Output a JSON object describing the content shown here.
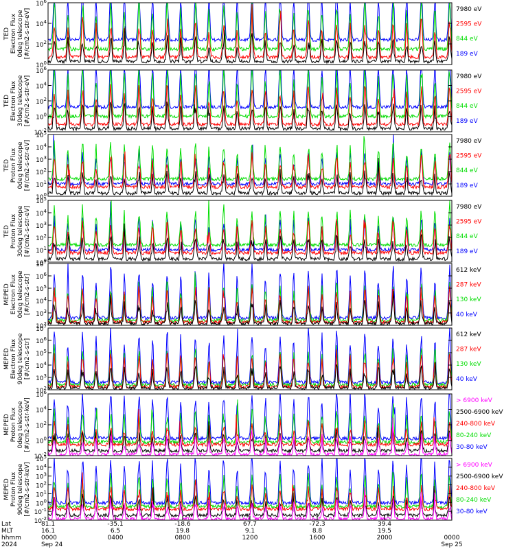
{
  "chart_data": [
    {
      "type": "line",
      "ylabel": [
        "TED",
        "Electron Flux",
        "0deg telescope",
        "[#/cm2-s-str-eV]"
      ],
      "ylim": [
        1,
        1000000
      ],
      "yscale": "log",
      "ytick_labels": [
        "10^0",
        "10^2",
        "10^4",
        "10^6"
      ],
      "series": [
        {
          "name": "7980 eV",
          "color": "#000000"
        },
        {
          "name": "2595 eV",
          "color": "#ff0000"
        },
        {
          "name": "844 eV",
          "color": "#00dd00"
        },
        {
          "name": "189 eV",
          "color": "#0000ff"
        }
      ]
    },
    {
      "type": "line",
      "ylabel": [
        "TED",
        "Electron Flux",
        "30deg telescope",
        "[#/cm2-s-str-eV]"
      ],
      "ylim": [
        0.01,
        1000000
      ],
      "yscale": "log",
      "ytick_labels": [
        "10^-2",
        "10^0",
        "10^2",
        "10^4",
        "10^6"
      ],
      "series": [
        {
          "name": "7980 eV",
          "color": "#000000"
        },
        {
          "name": "2595 eV",
          "color": "#ff0000"
        },
        {
          "name": "844 eV",
          "color": "#00dd00"
        },
        {
          "name": "189 eV",
          "color": "#0000ff"
        }
      ]
    },
    {
      "type": "line",
      "ylabel": [
        "TED",
        "Proton Flux",
        "0deg telescope",
        "[#/cm2-s-str-eV]"
      ],
      "ylim": [
        1,
        100000
      ],
      "yscale": "log",
      "ytick_labels": [
        "10^0",
        "10^1",
        "10^2",
        "10^3",
        "10^4",
        "10^5"
      ],
      "series": [
        {
          "name": "7980 eV",
          "color": "#000000"
        },
        {
          "name": "2595 eV",
          "color": "#ff0000"
        },
        {
          "name": "844 eV",
          "color": "#00dd00"
        },
        {
          "name": "189 eV",
          "color": "#0000ff"
        }
      ]
    },
    {
      "type": "line",
      "ylabel": [
        "TED",
        "Proton Flux",
        "30deg telescope",
        "[#/cm2-s-str-eV]"
      ],
      "ylim": [
        1,
        100000
      ],
      "yscale": "log",
      "ytick_labels": [
        "10^0",
        "10^1",
        "10^2",
        "10^3",
        "10^4",
        "10^5"
      ],
      "series": [
        {
          "name": "7980 eV",
          "color": "#000000"
        },
        {
          "name": "2595 eV",
          "color": "#ff0000"
        },
        {
          "name": "844 eV",
          "color": "#00dd00"
        },
        {
          "name": "189 eV",
          "color": "#0000ff"
        }
      ]
    },
    {
      "type": "line",
      "ylabel": [
        "MEPED",
        "Electron Flux",
        "0deg telescope",
        "[#/cm2-s-str]"
      ],
      "ylim": [
        100,
        10000000
      ],
      "yscale": "log",
      "ytick_labels": [
        "10^2",
        "10^3",
        "10^4",
        "10^5",
        "10^6",
        "10^7"
      ],
      "series": [
        {
          "name": "612 keV",
          "color": "#000000"
        },
        {
          "name": "287 keV",
          "color": "#ff0000"
        },
        {
          "name": "130 keV",
          "color": "#00dd00"
        },
        {
          "name": "40 keV",
          "color": "#0000ff"
        }
      ]
    },
    {
      "type": "line",
      "ylabel": [
        "MEPED",
        "Electron Flux",
        "90deg telescope",
        "[#/cm2-s-str]"
      ],
      "ylim": [
        100,
        10000000
      ],
      "yscale": "log",
      "ytick_labels": [
        "10^2",
        "10^3",
        "10^4",
        "10^5",
        "10^6",
        "10^7"
      ],
      "series": [
        {
          "name": "612 keV",
          "color": "#000000"
        },
        {
          "name": "287 keV",
          "color": "#ff0000"
        },
        {
          "name": "130 keV",
          "color": "#00dd00"
        },
        {
          "name": "40 keV",
          "color": "#0000ff"
        }
      ]
    },
    {
      "type": "line",
      "ylabel": [
        "MEPED",
        "Proton Flux",
        "0deg telescope",
        "[#/cm2-s-str-keV]"
      ],
      "ylim": [
        0.01,
        1000000
      ],
      "yscale": "log",
      "ytick_labels": [
        "10^-2",
        "10^0",
        "10^2",
        "10^4",
        "10^6"
      ],
      "series": [
        {
          "name": "> 6900 keV",
          "color": "#ff00ff"
        },
        {
          "name": "2500-6900 keV",
          "color": "#000000"
        },
        {
          "name": "240-800 keV",
          "color": "#ff0000"
        },
        {
          "name": "80-240 keV",
          "color": "#00dd00"
        },
        {
          "name": "30-80 keV",
          "color": "#0000ff"
        }
      ]
    },
    {
      "type": "line",
      "ylabel": [
        "MEPED",
        "Proton Flux",
        "90deg telescope",
        "[#/cm2-s-str-keV]"
      ],
      "ylim": [
        0.01,
        100000
      ],
      "yscale": "log",
      "ytick_labels": [
        "10^-2",
        "10^-1",
        "10^0",
        "10^1",
        "10^2",
        "10^3",
        "10^4",
        "10^5"
      ],
      "series": [
        {
          "name": "> 6900 keV",
          "color": "#ff00ff"
        },
        {
          "name": "2500-6900 keV",
          "color": "#000000"
        },
        {
          "name": "240-800 keV",
          "color": "#ff0000"
        },
        {
          "name": "80-240 keV",
          "color": "#00dd00"
        },
        {
          "name": "30-80 keV",
          "color": "#0000ff"
        }
      ]
    }
  ],
  "x_axis": {
    "row_labels": [
      "Lat",
      "MLT",
      "hhmm",
      "2024"
    ],
    "columns": [
      {
        "lat": "81.1",
        "mlt": "16.1",
        "hhmm": "0000",
        "date": "Sep 24"
      },
      {
        "lat": "-35.1",
        "mlt": "6.5",
        "hhmm": "0400",
        "date": ""
      },
      {
        "lat": "-18.6",
        "mlt": "19.8",
        "hhmm": "0800",
        "date": ""
      },
      {
        "lat": "67.7",
        "mlt": "9.1",
        "hhmm": "1200",
        "date": ""
      },
      {
        "lat": "-72.3",
        "mlt": "8.8",
        "hhmm": "1600",
        "date": ""
      },
      {
        "lat": "39.4",
        "mlt": "19.5",
        "hhmm": "2000",
        "date": ""
      },
      {
        "lat": "",
        "mlt": "",
        "hhmm": "0000",
        "date": "Sep 25"
      }
    ]
  }
}
